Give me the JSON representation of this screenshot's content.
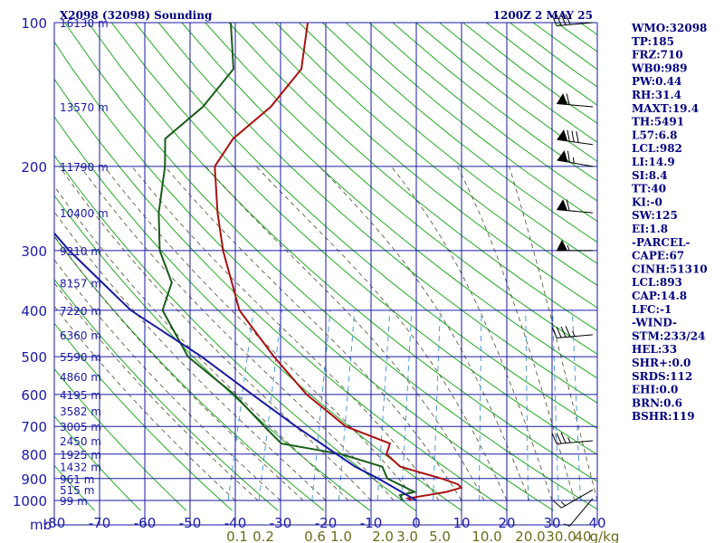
{
  "header": {
    "station_title": "X2098 (32098) Sounding",
    "valid_time": "1200Z  2 MAY 25"
  },
  "chart_data": {
    "type": "line",
    "title": "X2098 (32098) Sounding",
    "subtitle": "1200Z  2 MAY 25",
    "pressure_unit": "mb",
    "mixing_ratio_unit": "g/kg",
    "ylim": [
      1000,
      100
    ],
    "xlim": [
      -80,
      40
    ],
    "pressure_ticks": [
      100,
      200,
      300,
      400,
      500,
      600,
      700,
      800,
      900,
      1000
    ],
    "temperature_ticks": [
      -80,
      -70,
      -60,
      -50,
      -40,
      -30,
      -20,
      -10,
      0,
      10,
      20,
      30,
      40
    ],
    "height_labels": [
      {
        "p": 100,
        "label": "16130 m"
      },
      {
        "p": 150,
        "label": "13570 m"
      },
      {
        "p": 200,
        "label": "11790 m"
      },
      {
        "p": 250,
        "label": "10400 m"
      },
      {
        "p": 300,
        "label": "9210 m"
      },
      {
        "p": 350,
        "label": "8157 m"
      },
      {
        "p": 400,
        "label": "7220 m"
      },
      {
        "p": 450,
        "label": "6360 m"
      },
      {
        "p": 500,
        "label": "5590 m"
      },
      {
        "p": 550,
        "label": "4860 m"
      },
      {
        "p": 600,
        "label": "4195 m"
      },
      {
        "p": 650,
        "label": "3582 m"
      },
      {
        "p": 700,
        "label": "3005 m"
      },
      {
        "p": 750,
        "label": "2450 m"
      },
      {
        "p": 800,
        "label": "1925 m"
      },
      {
        "p": 850,
        "label": "1432 m"
      },
      {
        "p": 900,
        "label": "961 m"
      },
      {
        "p": 950,
        "label": "515 m"
      },
      {
        "p": 1000,
        "label": "99 m"
      }
    ],
    "mixing_ratio_labels": [
      "0.1",
      "0.2",
      "0.6",
      "1.0",
      "2.0",
      "3.0",
      "5.0",
      "10.0",
      "20.0",
      "30.0",
      "40",
      "g/kg"
    ],
    "series": [
      {
        "name": "Temperature",
        "color": "#aa1111",
        "points": [
          {
            "p": 1000,
            "t": -1
          },
          {
            "p": 990,
            "t": -2
          },
          {
            "p": 975,
            "t": 2
          },
          {
            "p": 960,
            "t": 6
          },
          {
            "p": 940,
            "t": 9
          },
          {
            "p": 925,
            "t": 8
          },
          {
            "p": 900,
            "t": 4
          },
          {
            "p": 850,
            "t": -6
          },
          {
            "p": 800,
            "t": -10
          },
          {
            "p": 760,
            "t": -10
          },
          {
            "p": 700,
            "t": -21
          },
          {
            "p": 600,
            "t": -32
          },
          {
            "p": 500,
            "t": -42
          },
          {
            "p": 400,
            "t": -53
          },
          {
            "p": 300,
            "t": -61
          },
          {
            "p": 250,
            "t": -65
          },
          {
            "p": 200,
            "t": -69
          },
          {
            "p": 175,
            "t": -67
          },
          {
            "p": 150,
            "t": -61
          },
          {
            "p": 125,
            "t": -57
          },
          {
            "p": 100,
            "t": -59
          }
        ]
      },
      {
        "name": "Dewpoint",
        "color": "#1a5c1a",
        "points": [
          {
            "p": 1000,
            "t": -3
          },
          {
            "p": 975,
            "t": -4
          },
          {
            "p": 960,
            "t": -1
          },
          {
            "p": 900,
            "t": -8
          },
          {
            "p": 850,
            "t": -10
          },
          {
            "p": 800,
            "t": -20
          },
          {
            "p": 760,
            "t": -34
          },
          {
            "p": 700,
            "t": -39
          },
          {
            "p": 600,
            "t": -48
          },
          {
            "p": 500,
            "t": -61
          },
          {
            "p": 400,
            "t": -70
          },
          {
            "p": 350,
            "t": -70
          },
          {
            "p": 300,
            "t": -75
          },
          {
            "p": 250,
            "t": -78
          },
          {
            "p": 200,
            "t": -80
          },
          {
            "p": 175,
            "t": -82
          },
          {
            "p": 150,
            "t": -76
          },
          {
            "p": 125,
            "t": -72
          },
          {
            "p": 100,
            "t": -76
          }
        ]
      },
      {
        "name": "Parcel",
        "color": "#1a1aa0",
        "points": [
          {
            "p": 1000,
            "t": 0
          },
          {
            "p": 900,
            "t": -10
          },
          {
            "p": 850,
            "t": -16
          },
          {
            "p": 700,
            "t": -32
          },
          {
            "p": 600,
            "t": -44
          },
          {
            "p": 500,
            "t": -58
          },
          {
            "p": 400,
            "t": -77
          },
          {
            "p": 300,
            "t": -95
          },
          {
            "p": 250,
            "t": -105
          },
          {
            "p": 200,
            "t": -116
          }
        ]
      }
    ],
    "wind_barbs": [
      {
        "p": 100,
        "dir": 265,
        "spd": 40
      },
      {
        "p": 150,
        "dir": 275,
        "spd": 60
      },
      {
        "p": 180,
        "dir": 278,
        "spd": 80
      },
      {
        "p": 200,
        "dir": 280,
        "spd": 65
      },
      {
        "p": 250,
        "dir": 275,
        "spd": 60
      },
      {
        "p": 300,
        "dir": 270,
        "spd": 55
      },
      {
        "p": 450,
        "dir": 265,
        "spd": 45
      },
      {
        "p": 750,
        "dir": 265,
        "spd": 35
      },
      {
        "p": 950,
        "dir": 240,
        "spd": 15
      },
      {
        "p": 990,
        "dir": 220,
        "spd": 5
      }
    ]
  },
  "indices": [
    "WMO:32098",
    "TP:185",
    "FRZ:710",
    "WB0:989",
    "PW:0.44",
    "RH:31.4",
    "MAXT:19.4",
    "TH:5491",
    "L57:6.8",
    "LCL:982",
    "LI:14.9",
    "SI:8.4",
    "TT:40",
    "KI:-0",
    "SW:125",
    "EI:1.8",
    "-PARCEL-",
    "CAPE:67",
    "CINH:51310",
    "LCL:893",
    "CAP:14.8",
    "LFC:-1",
    "-WIND-",
    "STM:233/24",
    "HEL:33",
    "SHR+:0.0",
    "SRDS:112",
    "EHI:0.0",
    "BRN:0.6",
    "BSHR:119"
  ],
  "colors": {
    "grid": "#1a1aa6",
    "dry_adiabat": "#22aa22",
    "moist_adiabat": "#4a4a2a",
    "mixing_ratio": "#3a8fd8",
    "background": "#ffffff"
  }
}
